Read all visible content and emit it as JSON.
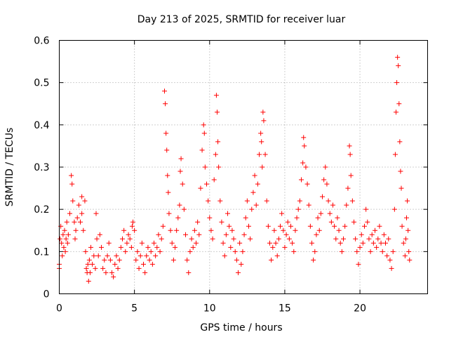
{
  "chart_data": {
    "type": "scatter",
    "title": "Day 213 of 2025, SRMTID for receiver luar",
    "xlabel": "GPS time / hours",
    "ylabel": "SRMTID / TECUs",
    "xlim": [
      0,
      24.5
    ],
    "ylim": [
      0,
      0.6
    ],
    "xticks": [
      0,
      5,
      10,
      15,
      20
    ],
    "yticks": [
      0,
      0.1,
      0.2,
      0.3,
      0.4,
      0.5,
      0.6
    ],
    "xtick_labels": [
      "0",
      "5",
      "10",
      "15",
      "20"
    ],
    "ytick_labels": [
      "0",
      "0.1",
      "0.2",
      "0.3",
      "0.4",
      "0.5",
      "0.6"
    ],
    "grid": true,
    "marker": "plus",
    "color": "#ff0000",
    "series": [
      {
        "name": "SRMTID",
        "points": [
          [
            0.0,
            0.06
          ],
          [
            0.0,
            0.07
          ],
          [
            0.05,
            0.13
          ],
          [
            0.1,
            0.16
          ],
          [
            0.15,
            0.12
          ],
          [
            0.2,
            0.09
          ],
          [
            0.25,
            0.14
          ],
          [
            0.3,
            0.11
          ],
          [
            0.35,
            0.15
          ],
          [
            0.4,
            0.1
          ],
          [
            0.45,
            0.13
          ],
          [
            0.5,
            0.17
          ],
          [
            0.55,
            0.12
          ],
          [
            0.6,
            0.14
          ],
          [
            0.7,
            0.19
          ],
          [
            0.8,
            0.28
          ],
          [
            0.85,
            0.26
          ],
          [
            0.9,
            0.22
          ],
          [
            1.0,
            0.17
          ],
          [
            1.05,
            0.13
          ],
          [
            1.1,
            0.15
          ],
          [
            1.2,
            0.18
          ],
          [
            1.3,
            0.21
          ],
          [
            1.4,
            0.17
          ],
          [
            1.5,
            0.19
          ],
          [
            1.5,
            0.23
          ],
          [
            1.6,
            0.15
          ],
          [
            1.7,
            0.22
          ],
          [
            1.75,
            0.1
          ],
          [
            1.8,
            0.06
          ],
          [
            1.85,
            0.05
          ],
          [
            1.9,
            0.07
          ],
          [
            1.95,
            0.03
          ],
          [
            2.0,
            0.08
          ],
          [
            2.05,
            0.05
          ],
          [
            2.1,
            0.11
          ],
          [
            2.2,
            0.07
          ],
          [
            2.3,
            0.09
          ],
          [
            2.4,
            0.06
          ],
          [
            2.45,
            0.19
          ],
          [
            2.5,
            0.13
          ],
          [
            2.6,
            0.09
          ],
          [
            2.7,
            0.14
          ],
          [
            2.8,
            0.11
          ],
          [
            2.9,
            0.06
          ],
          [
            3.0,
            0.08
          ],
          [
            3.1,
            0.05
          ],
          [
            3.2,
            0.09
          ],
          [
            3.3,
            0.12
          ],
          [
            3.4,
            0.08
          ],
          [
            3.5,
            0.05
          ],
          [
            3.6,
            0.04
          ],
          [
            3.7,
            0.07
          ],
          [
            3.8,
            0.09
          ],
          [
            3.9,
            0.06
          ],
          [
            4.0,
            0.08
          ],
          [
            4.1,
            0.11
          ],
          [
            4.2,
            0.13
          ],
          [
            4.3,
            0.15
          ],
          [
            4.4,
            0.1
          ],
          [
            4.5,
            0.12
          ],
          [
            4.6,
            0.14
          ],
          [
            4.7,
            0.13
          ],
          [
            4.8,
            0.11
          ],
          [
            4.85,
            0.16
          ],
          [
            4.9,
            0.17
          ],
          [
            5.0,
            0.15
          ],
          [
            5.1,
            0.08
          ],
          [
            5.2,
            0.1
          ],
          [
            5.3,
            0.06
          ],
          [
            5.4,
            0.09
          ],
          [
            5.5,
            0.12
          ],
          [
            5.6,
            0.07
          ],
          [
            5.7,
            0.05
          ],
          [
            5.8,
            0.09
          ],
          [
            5.9,
            0.11
          ],
          [
            6.0,
            0.08
          ],
          [
            6.1,
            0.1
          ],
          [
            6.2,
            0.07
          ],
          [
            6.3,
            0.12
          ],
          [
            6.4,
            0.09
          ],
          [
            6.5,
            0.11
          ],
          [
            6.6,
            0.14
          ],
          [
            6.7,
            0.1
          ],
          [
            6.8,
            0.13
          ],
          [
            6.9,
            0.16
          ],
          [
            7.0,
            0.48
          ],
          [
            7.05,
            0.45
          ],
          [
            7.1,
            0.38
          ],
          [
            7.15,
            0.34
          ],
          [
            7.2,
            0.28
          ],
          [
            7.25,
            0.24
          ],
          [
            7.3,
            0.19
          ],
          [
            7.4,
            0.15
          ],
          [
            7.5,
            0.12
          ],
          [
            7.6,
            0.08
          ],
          [
            7.7,
            0.11
          ],
          [
            7.8,
            0.15
          ],
          [
            7.9,
            0.18
          ],
          [
            8.0,
            0.21
          ],
          [
            8.05,
            0.29
          ],
          [
            8.1,
            0.32
          ],
          [
            8.2,
            0.26
          ],
          [
            8.3,
            0.2
          ],
          [
            8.4,
            0.14
          ],
          [
            8.5,
            0.08
          ],
          [
            8.6,
            0.05
          ],
          [
            8.7,
            0.1
          ],
          [
            8.8,
            0.13
          ],
          [
            8.9,
            0.11
          ],
          [
            9.0,
            0.15
          ],
          [
            9.1,
            0.12
          ],
          [
            9.2,
            0.17
          ],
          [
            9.3,
            0.14
          ],
          [
            9.4,
            0.25
          ],
          [
            9.5,
            0.34
          ],
          [
            9.6,
            0.4
          ],
          [
            9.65,
            0.38
          ],
          [
            9.7,
            0.3
          ],
          [
            9.8,
            0.26
          ],
          [
            9.9,
            0.22
          ],
          [
            10.0,
            0.18
          ],
          [
            10.1,
            0.15
          ],
          [
            10.2,
            0.13
          ],
          [
            10.3,
            0.27
          ],
          [
            10.4,
            0.33
          ],
          [
            10.45,
            0.47
          ],
          [
            10.5,
            0.43
          ],
          [
            10.55,
            0.36
          ],
          [
            10.6,
            0.3
          ],
          [
            10.7,
            0.22
          ],
          [
            10.8,
            0.17
          ],
          [
            10.9,
            0.12
          ],
          [
            11.0,
            0.09
          ],
          [
            11.1,
            0.14
          ],
          [
            11.2,
            0.19
          ],
          [
            11.3,
            0.16
          ],
          [
            11.4,
            0.11
          ],
          [
            11.5,
            0.15
          ],
          [
            11.6,
            0.13
          ],
          [
            11.7,
            0.1
          ],
          [
            11.8,
            0.08
          ],
          [
            11.9,
            0.05
          ],
          [
            12.0,
            0.12
          ],
          [
            12.1,
            0.07
          ],
          [
            12.2,
            0.1
          ],
          [
            12.3,
            0.14
          ],
          [
            12.4,
            0.18
          ],
          [
            12.5,
            0.22
          ],
          [
            12.6,
            0.16
          ],
          [
            12.7,
            0.13
          ],
          [
            12.8,
            0.2
          ],
          [
            12.9,
            0.24
          ],
          [
            13.0,
            0.28
          ],
          [
            13.1,
            0.21
          ],
          [
            13.2,
            0.26
          ],
          [
            13.3,
            0.33
          ],
          [
            13.4,
            0.38
          ],
          [
            13.45,
            0.36
          ],
          [
            13.5,
            0.3
          ],
          [
            13.55,
            0.43
          ],
          [
            13.6,
            0.41
          ],
          [
            13.7,
            0.33
          ],
          [
            13.8,
            0.22
          ],
          [
            13.9,
            0.16
          ],
          [
            14.0,
            0.12
          ],
          [
            14.1,
            0.08
          ],
          [
            14.2,
            0.11
          ],
          [
            14.3,
            0.15
          ],
          [
            14.4,
            0.12
          ],
          [
            14.5,
            0.09
          ],
          [
            14.6,
            0.13
          ],
          [
            14.7,
            0.16
          ],
          [
            14.8,
            0.19
          ],
          [
            14.9,
            0.15
          ],
          [
            15.0,
            0.11
          ],
          [
            15.1,
            0.14
          ],
          [
            15.2,
            0.17
          ],
          [
            15.3,
            0.13
          ],
          [
            15.4,
            0.16
          ],
          [
            15.5,
            0.12
          ],
          [
            15.6,
            0.1
          ],
          [
            15.7,
            0.15
          ],
          [
            15.8,
            0.18
          ],
          [
            15.9,
            0.2
          ],
          [
            16.0,
            0.22
          ],
          [
            16.1,
            0.27
          ],
          [
            16.2,
            0.31
          ],
          [
            16.25,
            0.37
          ],
          [
            16.3,
            0.35
          ],
          [
            16.4,
            0.3
          ],
          [
            16.5,
            0.26
          ],
          [
            16.6,
            0.21
          ],
          [
            16.7,
            0.16
          ],
          [
            16.8,
            0.12
          ],
          [
            16.9,
            0.08
          ],
          [
            17.0,
            0.1
          ],
          [
            17.1,
            0.14
          ],
          [
            17.2,
            0.18
          ],
          [
            17.3,
            0.15
          ],
          [
            17.4,
            0.19
          ],
          [
            17.5,
            0.23
          ],
          [
            17.6,
            0.27
          ],
          [
            17.7,
            0.3
          ],
          [
            17.8,
            0.26
          ],
          [
            17.9,
            0.22
          ],
          [
            18.0,
            0.19
          ],
          [
            18.1,
            0.17
          ],
          [
            18.2,
            0.21
          ],
          [
            18.3,
            0.16
          ],
          [
            18.4,
            0.13
          ],
          [
            18.5,
            0.18
          ],
          [
            18.6,
            0.15
          ],
          [
            18.7,
            0.12
          ],
          [
            18.8,
            0.1
          ],
          [
            18.9,
            0.13
          ],
          [
            19.0,
            0.16
          ],
          [
            19.1,
            0.21
          ],
          [
            19.2,
            0.25
          ],
          [
            19.3,
            0.35
          ],
          [
            19.35,
            0.33
          ],
          [
            19.4,
            0.28
          ],
          [
            19.5,
            0.22
          ],
          [
            19.6,
            0.17
          ],
          [
            19.7,
            0.13
          ],
          [
            19.8,
            0.1
          ],
          [
            19.9,
            0.07
          ],
          [
            20.0,
            0.11
          ],
          [
            20.1,
            0.14
          ],
          [
            20.2,
            0.12
          ],
          [
            20.3,
            0.16
          ],
          [
            20.4,
            0.2
          ],
          [
            20.5,
            0.17
          ],
          [
            20.6,
            0.13
          ],
          [
            20.7,
            0.1
          ],
          [
            20.8,
            0.14
          ],
          [
            20.9,
            0.12
          ],
          [
            21.0,
            0.15
          ],
          [
            21.1,
            0.11
          ],
          [
            21.2,
            0.13
          ],
          [
            21.3,
            0.16
          ],
          [
            21.4,
            0.12
          ],
          [
            21.5,
            0.1
          ],
          [
            21.6,
            0.14
          ],
          [
            21.7,
            0.12
          ],
          [
            21.8,
            0.09
          ],
          [
            21.9,
            0.13
          ],
          [
            22.0,
            0.08
          ],
          [
            22.1,
            0.06
          ],
          [
            22.2,
            0.1
          ],
          [
            22.3,
            0.2
          ],
          [
            22.35,
            0.33
          ],
          [
            22.4,
            0.43
          ],
          [
            22.45,
            0.5
          ],
          [
            22.5,
            0.56
          ],
          [
            22.55,
            0.54
          ],
          [
            22.6,
            0.45
          ],
          [
            22.65,
            0.36
          ],
          [
            22.7,
            0.29
          ],
          [
            22.75,
            0.25
          ],
          [
            22.8,
            0.16
          ],
          [
            22.9,
            0.12
          ],
          [
            23.0,
            0.09
          ],
          [
            23.05,
            0.13
          ],
          [
            23.1,
            0.18
          ],
          [
            23.15,
            0.22
          ],
          [
            23.2,
            0.15
          ],
          [
            23.25,
            0.1
          ],
          [
            23.3,
            0.08
          ]
        ]
      }
    ]
  }
}
